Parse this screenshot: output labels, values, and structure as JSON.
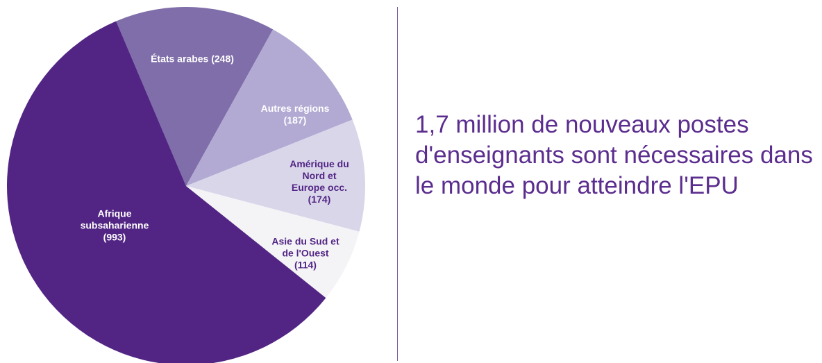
{
  "chart_data": {
    "type": "pie",
    "categories": [
      "États arabes",
      "Autres régions",
      "Amérique du Nord et Europe occ.",
      "Asie du Sud et de l'Ouest",
      "Afrique subsaharienne"
    ],
    "values": [
      248,
      187,
      174,
      114,
      993
    ],
    "value_labels": [
      "(248)",
      "(187)",
      "(174)",
      "(114)",
      "(993)"
    ],
    "colors": [
      "#7f6ea9",
      "#b2aad3",
      "#d9d6ea",
      "#f4f4f6",
      "#522584"
    ]
  },
  "caption": "1,7 million de nouveaux postes d'enseignants sont nécessaires dans le monde pour atteindre l'EPU"
}
